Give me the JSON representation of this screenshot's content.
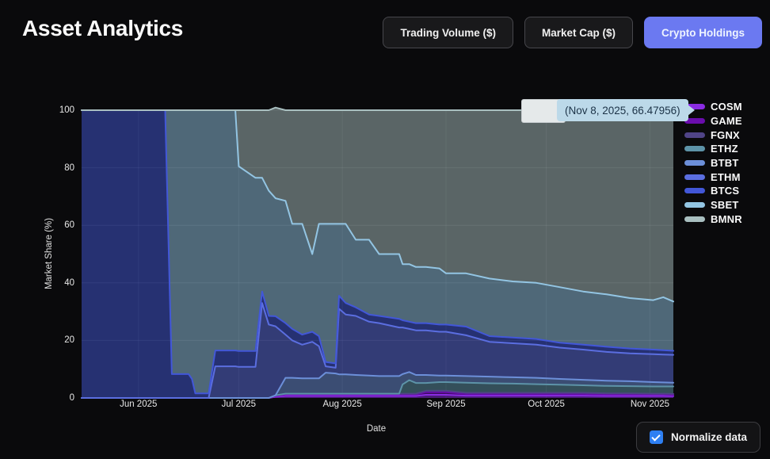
{
  "page": {
    "title": "Asset Analytics"
  },
  "toolbar": {
    "buttons": [
      {
        "label": "Trading Volume ($)",
        "active": false
      },
      {
        "label": "Market Cap ($)",
        "active": false
      },
      {
        "label": "Crypto Holdings",
        "active": true
      }
    ],
    "active_color": "#6b79f1"
  },
  "tooltip": {
    "value_text": "(Nov 8, 2025, 66.47956)",
    "hover_box_text": "",
    "bg": "#bcd9e9",
    "text_color": "#1c3347"
  },
  "controls": {
    "normalize_label": "Normalize data",
    "checked": true,
    "checkbox_color": "#2e7ff2"
  },
  "chart_data": {
    "type": "area",
    "stacked": true,
    "normalized_percent": true,
    "xlabel": "Date",
    "ylabel": "Market Share (%)",
    "ylim": [
      0,
      100
    ],
    "y_ticks": [
      0,
      20,
      40,
      60,
      80,
      100
    ],
    "x_unit": "days since 2025-05-15",
    "x_tick_days": [
      17,
      47,
      78,
      109,
      139,
      170
    ],
    "x_tick_labels": [
      "Jun 2025",
      "Jul 2025",
      "Aug 2025",
      "Sep 2025",
      "Oct 2025",
      "Nov 2025"
    ],
    "legend_position": "right",
    "grid": true,
    "fill_opacity": 0.5,
    "hover_point": {
      "date": "Nov 8, 2025",
      "series": "BMNR",
      "value": 66.47956
    },
    "x": [
      0,
      25,
      27,
      32,
      33,
      34,
      38,
      40,
      46,
      47,
      52,
      54,
      56,
      58,
      61,
      63,
      66,
      69,
      71,
      73,
      76,
      77,
      79,
      82,
      86,
      89,
      95,
      96,
      98,
      100,
      103,
      107,
      109,
      115,
      122,
      129,
      136,
      143,
      150,
      157,
      164,
      171,
      174,
      177
    ],
    "series": [
      {
        "name": "COSM",
        "color": "#8a2be2",
        "values": [
          0,
          0,
          0,
          0,
          0,
          0,
          0,
          0,
          0,
          0,
          0,
          0,
          0,
          0.4,
          0.7,
          0.7,
          0.7,
          0.7,
          0.7,
          0.7,
          0.7,
          0.7,
          0.7,
          0.7,
          0.7,
          0.7,
          0.7,
          0.7,
          0.7,
          0.7,
          1.1,
          1.1,
          1.1,
          0.8,
          0.8,
          0.8,
          0.8,
          0.8,
          0.8,
          0.7,
          0.7,
          0.7,
          0.7,
          0.6
        ]
      },
      {
        "name": "GAME",
        "color": "#6a0dad",
        "values": [
          0,
          0,
          0,
          0,
          0,
          0,
          0,
          0,
          0,
          0,
          0,
          0,
          0,
          0.3,
          0.5,
          0.5,
          0.5,
          0.5,
          0.5,
          0.5,
          0.5,
          0.5,
          0.5,
          0.5,
          0.5,
          0.5,
          0.5,
          0.5,
          0.5,
          0.5,
          0.9,
          0.9,
          0.9,
          0.6,
          0.6,
          0.6,
          0.6,
          0.6,
          0.6,
          0.5,
          0.5,
          0.5,
          0.5,
          0.45
        ]
      },
      {
        "name": "FGNX",
        "color": "#504487",
        "values": [
          0,
          0,
          0,
          0,
          0,
          0,
          0,
          0,
          0,
          0,
          0,
          0,
          0,
          0.2,
          0.3,
          0.3,
          0.3,
          0.3,
          0.3,
          0.3,
          0.3,
          0.3,
          0.3,
          0.3,
          0.3,
          0.3,
          0.3,
          0.3,
          0.3,
          0.3,
          0.5,
          0.5,
          0.5,
          0.4,
          0.4,
          0.4,
          0.4,
          0.4,
          0.4,
          0.4,
          0.4,
          0.3,
          0.3,
          0.35
        ]
      },
      {
        "name": "ETHZ",
        "color": "#5d93a8",
        "values": [
          0,
          0,
          0,
          0,
          0,
          0,
          0,
          0,
          0,
          0,
          0,
          0,
          0,
          0,
          0,
          0,
          0,
          0,
          0,
          0,
          0,
          0,
          0,
          0,
          0,
          0,
          0,
          3.2,
          4.7,
          3.7,
          2.7,
          3.0,
          3.0,
          3.5,
          3.3,
          3.2,
          3.0,
          2.8,
          2.6,
          2.6,
          2.5,
          2.5,
          2.5,
          2.6
        ]
      },
      {
        "name": "BTBT",
        "color": "#6c8fd9",
        "values": [
          0,
          0,
          0,
          0,
          0,
          0,
          0,
          0,
          0,
          0,
          0,
          0,
          0,
          0,
          5.5,
          5.5,
          5.3,
          5.3,
          5.3,
          7.3,
          7.0,
          6.7,
          6.7,
          6.5,
          6.3,
          6.1,
          6.1,
          3.6,
          2.8,
          2.8,
          2.8,
          2.3,
          2.3,
          2.3,
          2.3,
          2.2,
          2.2,
          2.0,
          1.9,
          1.8,
          1.7,
          1.5,
          1.4,
          1.3
        ]
      },
      {
        "name": "ETHM",
        "color": "#5b6ee0",
        "values": [
          0,
          0,
          0,
          0,
          0,
          0,
          0,
          11,
          11,
          10.8,
          10.8,
          33,
          25.5,
          24,
          15,
          13,
          11.7,
          12.7,
          11.2,
          2.2,
          2.0,
          22.8,
          20.8,
          20.5,
          18.7,
          18.4,
          16.9,
          16.2,
          15.0,
          15.5,
          15.5,
          15.2,
          15.2,
          14.2,
          12.1,
          11.8,
          11.5,
          10.9,
          10.5,
          10.0,
          9.7,
          9.7,
          9.7,
          9.7
        ]
      },
      {
        "name": "BTCS",
        "color": "#4257d8",
        "values": [
          100,
          100,
          8.3,
          8.3,
          6.6,
          1.6,
          1.6,
          5.5,
          5.5,
          5.5,
          5.5,
          4,
          3,
          3.5,
          4,
          4,
          3.5,
          3.5,
          3.5,
          1.5,
          1.5,
          4.5,
          4,
          3,
          2.5,
          2.5,
          3,
          2.5,
          2.5,
          2.5,
          2.5,
          2.5,
          2.5,
          3,
          2,
          2,
          2,
          1.7,
          1.7,
          1.8,
          1.7,
          1.6,
          1.5,
          1.4
        ]
      },
      {
        "name": "SBET",
        "color": "#93c5e3",
        "values": [
          0,
          0,
          91.7,
          91.7,
          93.4,
          98.4,
          98.4,
          83.5,
          83.5,
          64.2,
          60.2,
          39.5,
          43.5,
          41,
          42.5,
          36.5,
          38.5,
          27,
          39,
          48,
          48.5,
          25,
          27.5,
          23.5,
          26,
          21.5,
          22.5,
          19.5,
          20,
          19.5,
          19.5,
          19.5,
          17.8,
          18.5,
          20,
          19.5,
          19.5,
          19.3,
          18.5,
          18.2,
          17.5,
          17.2,
          18.4,
          17.12
        ]
      },
      {
        "name": "BMNR",
        "color": "#a9bfc0",
        "values": [
          0,
          0,
          0,
          0,
          0,
          0,
          0,
          0,
          0,
          19.5,
          23.5,
          23.5,
          28,
          31.5,
          31.5,
          39.5,
          39.5,
          50,
          39.5,
          39.5,
          39.5,
          39.5,
          39.5,
          45,
          45,
          50,
          50,
          53.5,
          53.5,
          54.5,
          54.5,
          55,
          56.7,
          56.7,
          58.5,
          59.5,
          60,
          61.5,
          63,
          64,
          65.3,
          66,
          65,
          66.48
        ]
      }
    ]
  }
}
